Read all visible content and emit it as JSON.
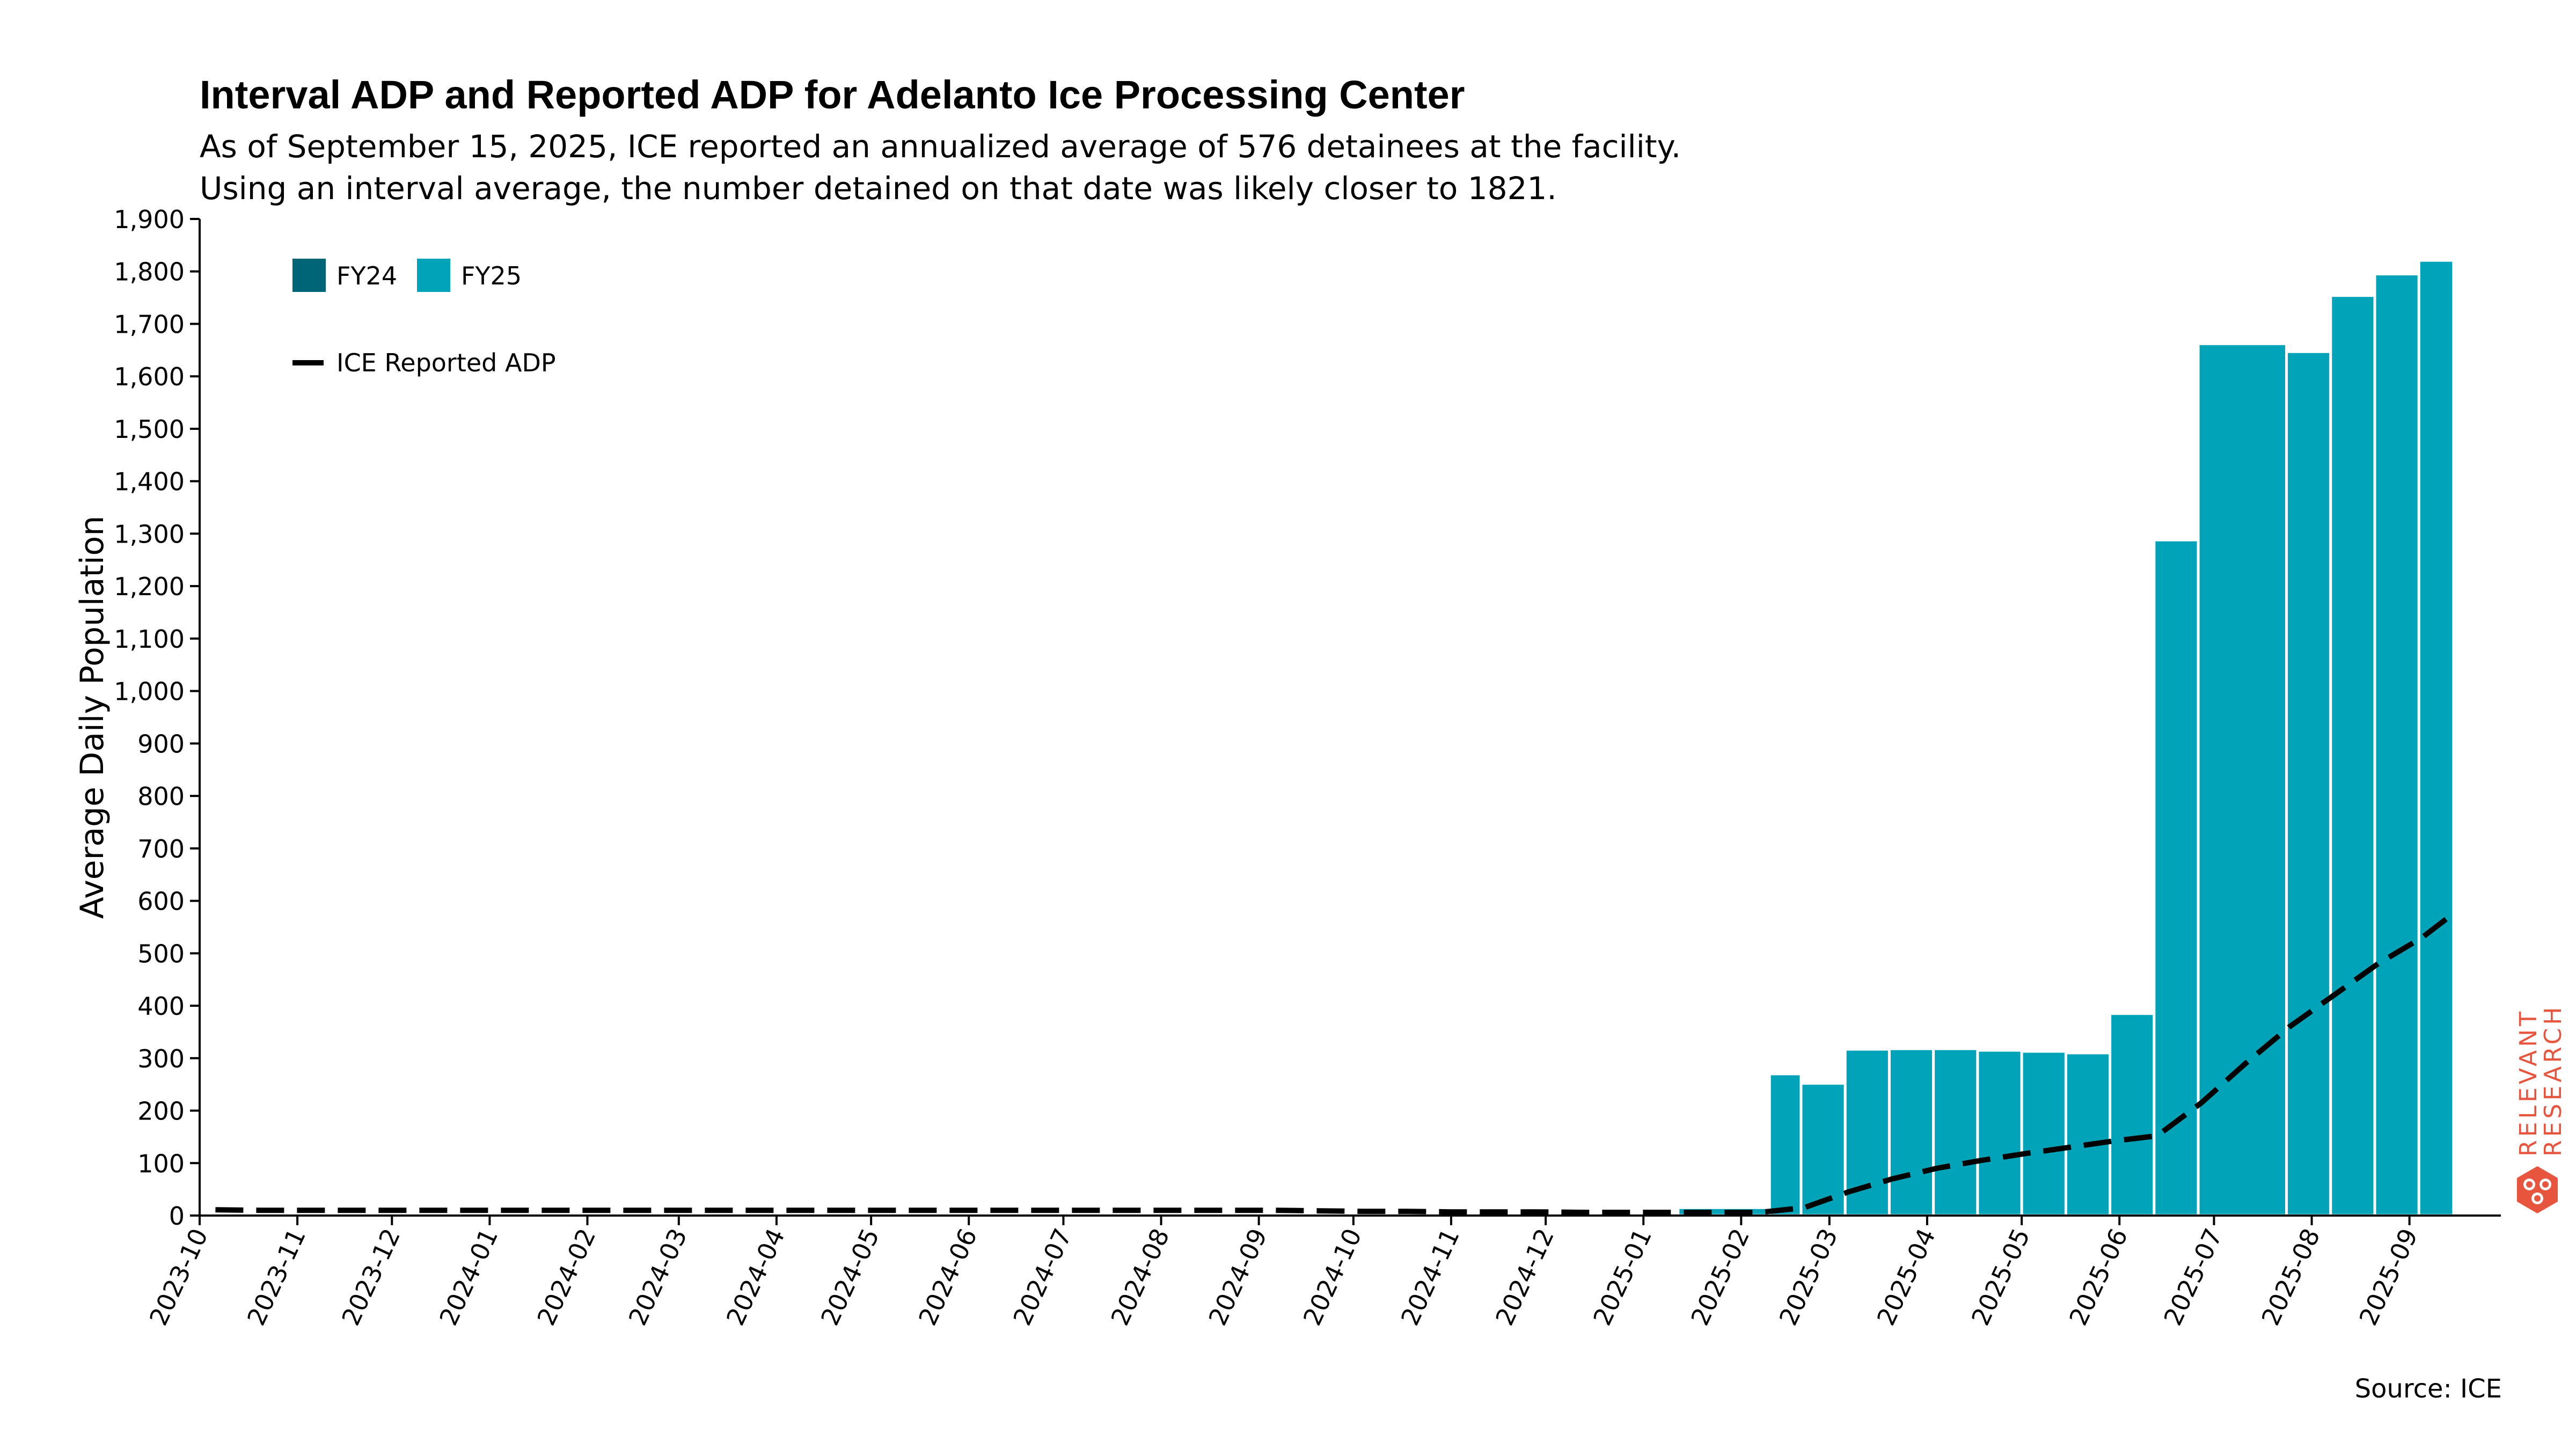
{
  "header": {
    "title": "Interval ADP and Reported ADP for Adelanto Ice Processing Center",
    "subtitle_line1": "As of September 15, 2025, ICE reported an annualized average of 576 detainees at the facility.",
    "subtitle_line2": "Using an interval average, the number detained on that date was likely closer to 1821."
  },
  "footer": {
    "source": "Source: ICE"
  },
  "brand": {
    "line1": "RELEVANT",
    "line2": "RESEARCH",
    "color": "#e8553e"
  },
  "chart_data": {
    "type": "bar",
    "ylabel": "Average Daily Population",
    "xlabel": "",
    "ylim": [
      0,
      1900
    ],
    "yticks": [
      0,
      100,
      200,
      300,
      400,
      500,
      600,
      700,
      800,
      900,
      1000,
      1100,
      1200,
      1300,
      1400,
      1500,
      1600,
      1700,
      1800,
      1900
    ],
    "xlim": [
      "2023-10-01",
      "2025-09-30"
    ],
    "xticks": [
      "2023-10",
      "2023-11",
      "2023-12",
      "2024-01",
      "2024-02",
      "2024-03",
      "2024-04",
      "2024-05",
      "2024-06",
      "2024-07",
      "2024-08",
      "2024-09",
      "2024-10",
      "2024-11",
      "2024-12",
      "2025-01",
      "2025-02",
      "2025-03",
      "2025-04",
      "2025-05",
      "2025-06",
      "2025-07",
      "2025-08",
      "2025-09"
    ],
    "grid": false,
    "legend_position": "top-left",
    "colors": {
      "FY24": "#006677",
      "FY25": "#00a3b8",
      "reported": "#000000"
    },
    "bars": [
      {
        "start": "2023-10-01",
        "end": "2023-10-08",
        "value": 3,
        "fy": "FY24"
      },
      {
        "start": "2024-02-25",
        "end": "2024-03-09",
        "value": 3,
        "fy": "FY24"
      },
      {
        "start": "2024-06-23",
        "end": "2024-07-06",
        "value": 3,
        "fy": "FY24"
      },
      {
        "start": "2025-01-12",
        "end": "2025-02-10",
        "value": 15,
        "fy": "FY25"
      },
      {
        "start": "2025-02-10",
        "end": "2025-02-20",
        "value": 270,
        "fy": "FY25"
      },
      {
        "start": "2025-02-20",
        "end": "2025-03-06",
        "value": 252,
        "fy": "FY25"
      },
      {
        "start": "2025-03-06",
        "end": "2025-03-20",
        "value": 317,
        "fy": "FY25"
      },
      {
        "start": "2025-03-20",
        "end": "2025-04-03",
        "value": 318,
        "fy": "FY25"
      },
      {
        "start": "2025-04-03",
        "end": "2025-04-17",
        "value": 318,
        "fy": "FY25"
      },
      {
        "start": "2025-04-17",
        "end": "2025-05-01",
        "value": 315,
        "fy": "FY25"
      },
      {
        "start": "2025-05-01",
        "end": "2025-05-15",
        "value": 313,
        "fy": "FY25"
      },
      {
        "start": "2025-05-15",
        "end": "2025-05-29",
        "value": 310,
        "fy": "FY25"
      },
      {
        "start": "2025-05-29",
        "end": "2025-06-12",
        "value": 385,
        "fy": "FY25"
      },
      {
        "start": "2025-06-12",
        "end": "2025-06-26",
        "value": 1288,
        "fy": "FY25"
      },
      {
        "start": "2025-06-26",
        "end": "2025-07-24",
        "value": 1662,
        "fy": "FY25"
      },
      {
        "start": "2025-07-24",
        "end": "2025-08-07",
        "value": 1647,
        "fy": "FY25"
      },
      {
        "start": "2025-08-07",
        "end": "2025-08-21",
        "value": 1754,
        "fy": "FY25"
      },
      {
        "start": "2025-08-21",
        "end": "2025-09-04",
        "value": 1795,
        "fy": "FY25"
      },
      {
        "start": "2025-09-04",
        "end": "2025-09-15",
        "value": 1821,
        "fy": "FY25"
      }
    ],
    "reported_adp": {
      "name": "ICE Reported ADP",
      "points": [
        {
          "date": "2023-10-06",
          "value": 11
        },
        {
          "date": "2023-10-20",
          "value": 10
        },
        {
          "date": "2023-11-03",
          "value": 10
        },
        {
          "date": "2023-11-17",
          "value": 10
        },
        {
          "date": "2023-12-01",
          "value": 10
        },
        {
          "date": "2023-12-15",
          "value": 10
        },
        {
          "date": "2023-12-29",
          "value": 10
        },
        {
          "date": "2024-01-12",
          "value": 10
        },
        {
          "date": "2024-01-26",
          "value": 10
        },
        {
          "date": "2024-02-09",
          "value": 10
        },
        {
          "date": "2024-02-23",
          "value": 10
        },
        {
          "date": "2024-03-08",
          "value": 10
        },
        {
          "date": "2024-03-22",
          "value": 10
        },
        {
          "date": "2024-04-05",
          "value": 10
        },
        {
          "date": "2024-04-19",
          "value": 10
        },
        {
          "date": "2024-05-03",
          "value": 10
        },
        {
          "date": "2024-05-17",
          "value": 10
        },
        {
          "date": "2024-05-31",
          "value": 10
        },
        {
          "date": "2024-06-14",
          "value": 10
        },
        {
          "date": "2024-06-28",
          "value": 10
        },
        {
          "date": "2024-07-12",
          "value": 10
        },
        {
          "date": "2024-07-26",
          "value": 10
        },
        {
          "date": "2024-08-09",
          "value": 10
        },
        {
          "date": "2024-08-23",
          "value": 10
        },
        {
          "date": "2024-09-06",
          "value": 10
        },
        {
          "date": "2024-09-20",
          "value": 9
        },
        {
          "date": "2024-10-04",
          "value": 8
        },
        {
          "date": "2024-10-18",
          "value": 8
        },
        {
          "date": "2024-11-01",
          "value": 7
        },
        {
          "date": "2024-11-15",
          "value": 7
        },
        {
          "date": "2024-11-29",
          "value": 7
        },
        {
          "date": "2024-12-13",
          "value": 6
        },
        {
          "date": "2024-12-27",
          "value": 6
        },
        {
          "date": "2025-01-10",
          "value": 6
        },
        {
          "date": "2025-01-24",
          "value": 6
        },
        {
          "date": "2025-02-07",
          "value": 6
        },
        {
          "date": "2025-02-21",
          "value": 15
        },
        {
          "date": "2025-03-07",
          "value": 45
        },
        {
          "date": "2025-03-21",
          "value": 70
        },
        {
          "date": "2025-04-04",
          "value": 90
        },
        {
          "date": "2025-04-18",
          "value": 105
        },
        {
          "date": "2025-05-02",
          "value": 118
        },
        {
          "date": "2025-05-16",
          "value": 130
        },
        {
          "date": "2025-05-30",
          "value": 142
        },
        {
          "date": "2025-06-13",
          "value": 152
        },
        {
          "date": "2025-06-27",
          "value": 215
        },
        {
          "date": "2025-07-11",
          "value": 290
        },
        {
          "date": "2025-07-25",
          "value": 360
        },
        {
          "date": "2025-08-08",
          "value": 420
        },
        {
          "date": "2025-08-22",
          "value": 480
        },
        {
          "date": "2025-09-05",
          "value": 530
        },
        {
          "date": "2025-09-15",
          "value": 576
        }
      ]
    },
    "legend": {
      "bars": [
        {
          "key": "FY24",
          "label": "FY24"
        },
        {
          "key": "FY25",
          "label": "FY25"
        }
      ],
      "line": {
        "label": "ICE Reported ADP"
      }
    }
  }
}
